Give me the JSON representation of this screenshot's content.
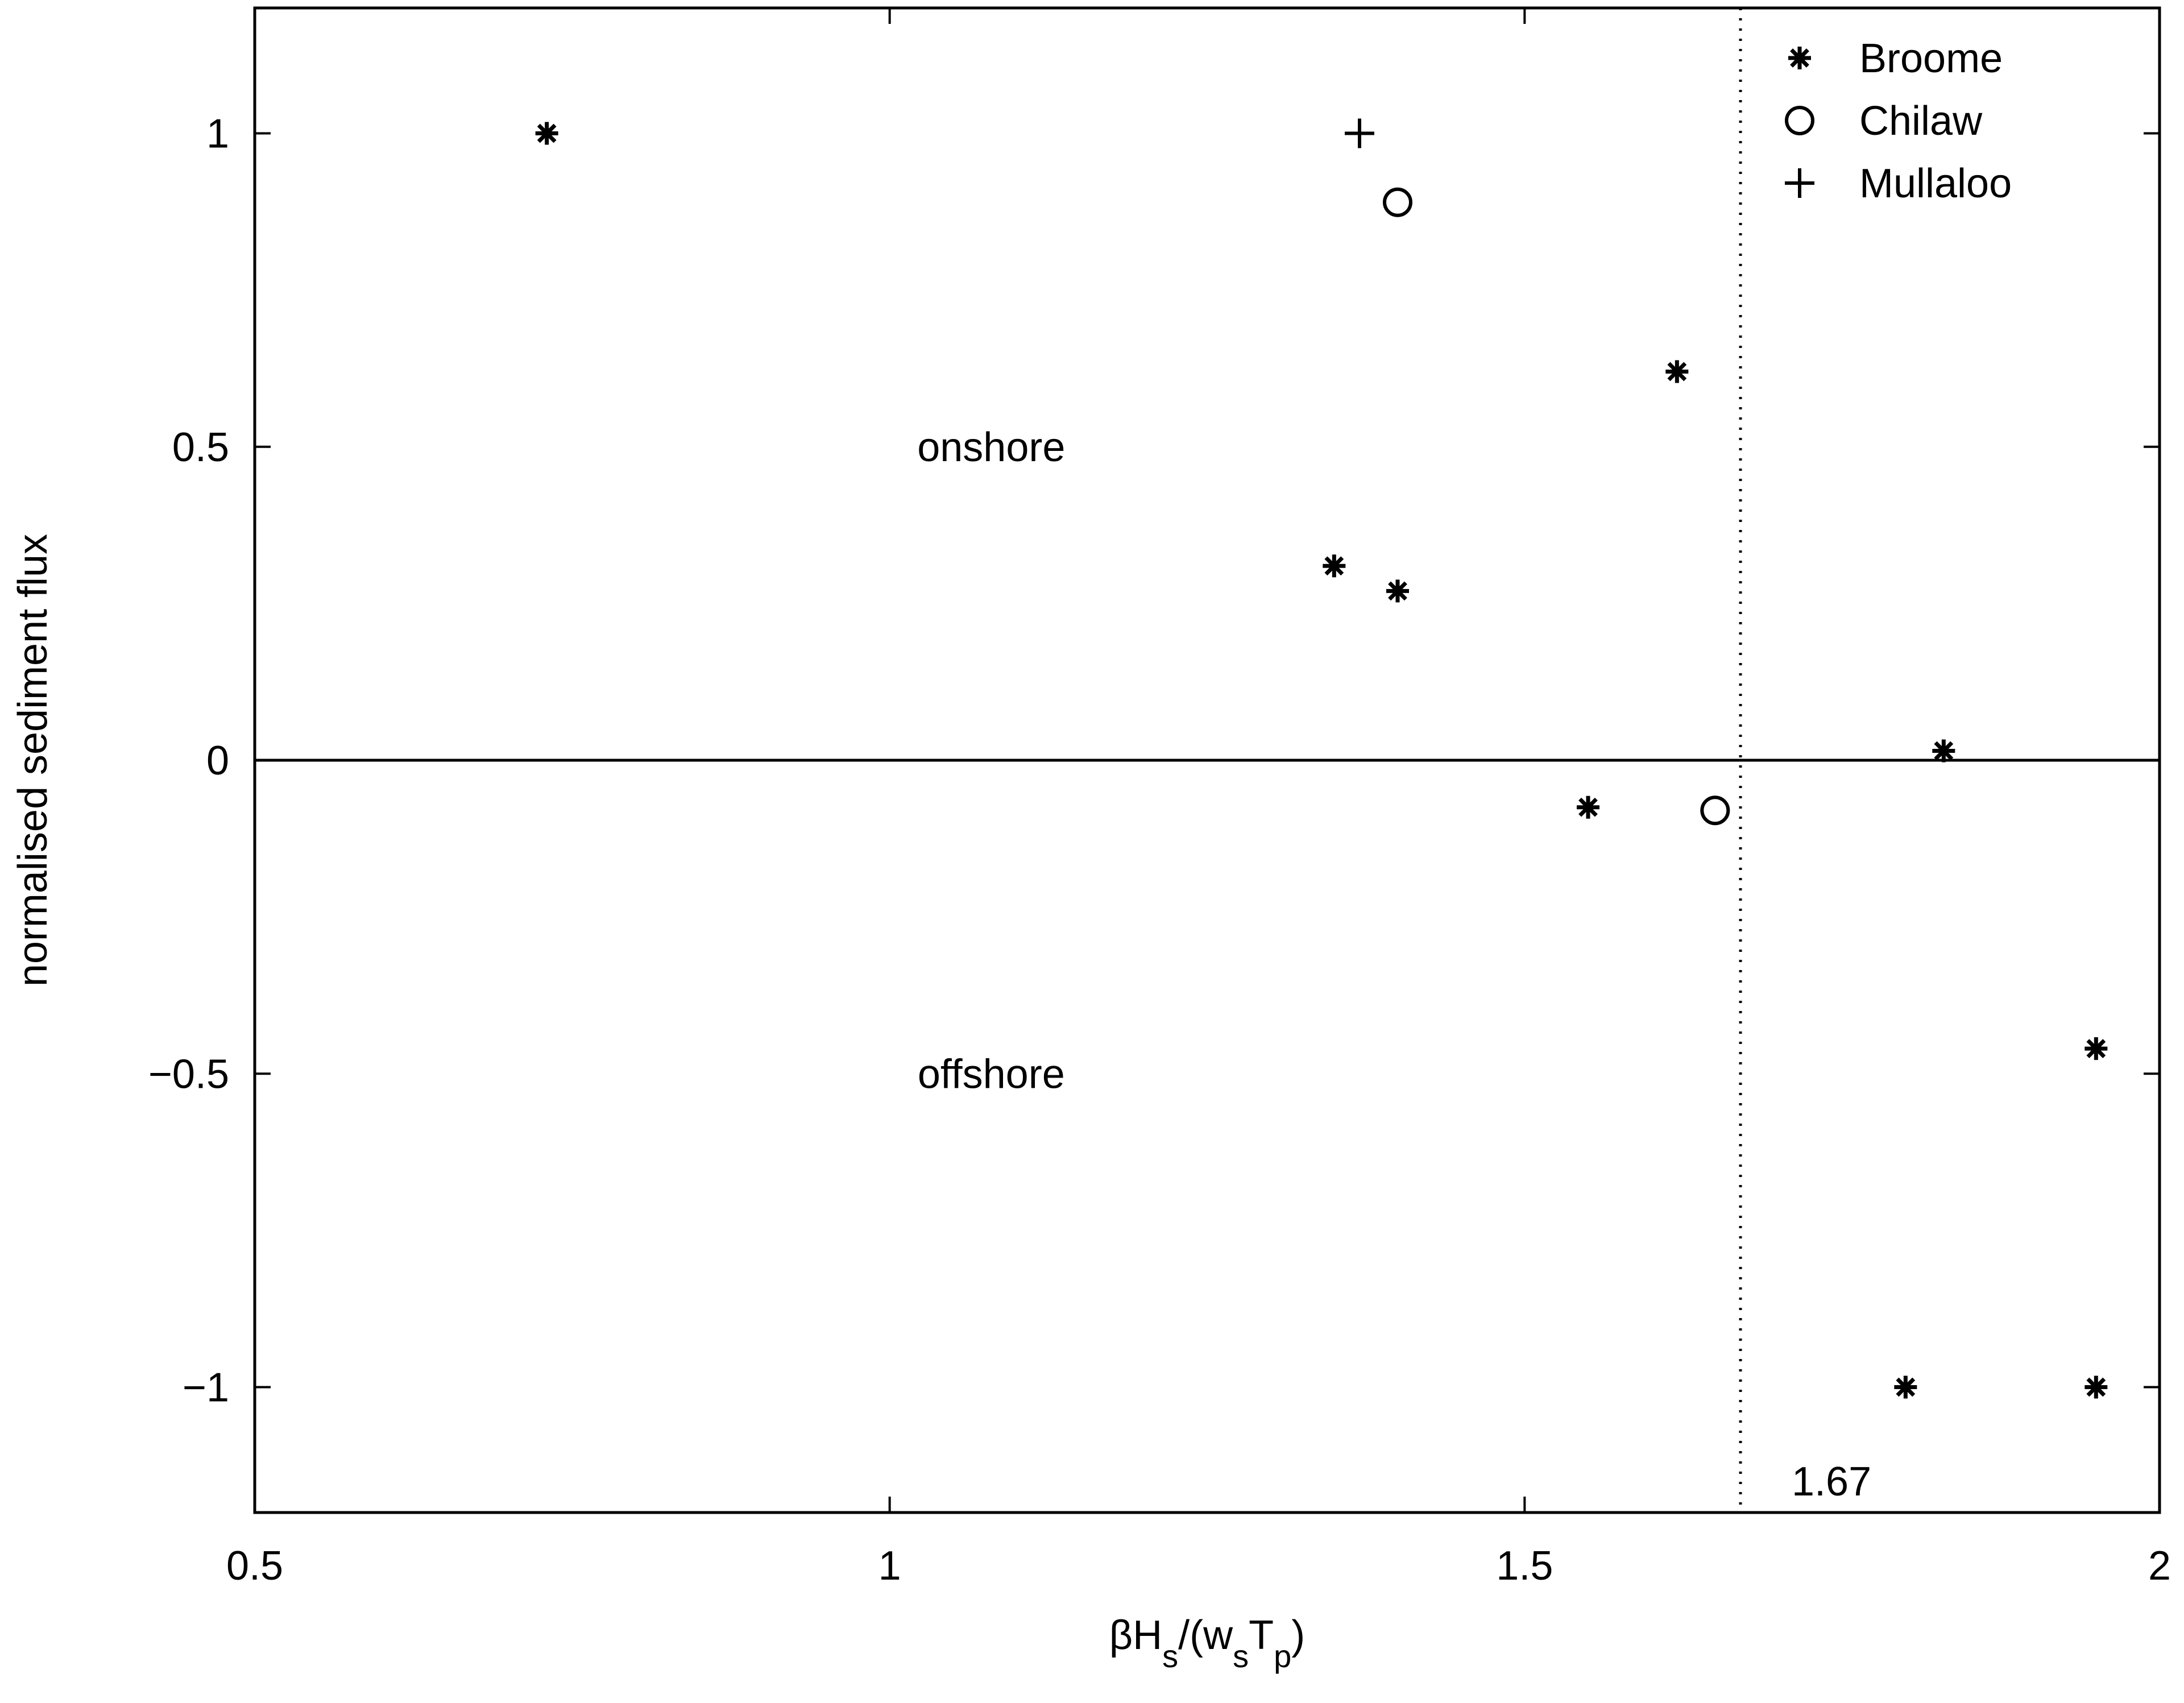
{
  "chart_data": {
    "type": "scatter",
    "xlabel": "βHs/(wsTp)",
    "xlabel_parts": [
      {
        "text": "βH",
        "sub": false
      },
      {
        "text": "s",
        "sub": true
      },
      {
        "text": "/(w",
        "sub": false
      },
      {
        "text": "s",
        "sub": true
      },
      {
        "text": "T",
        "sub": false
      },
      {
        "text": "p",
        "sub": true
      },
      {
        "text": ")",
        "sub": false
      }
    ],
    "ylabel": "normalised sediment flux",
    "xlim": [
      0.5,
      2.0
    ],
    "ylim": [
      -1.2,
      1.2
    ],
    "xticks": [
      0.5,
      1.0,
      1.5,
      2.0
    ],
    "xtick_labels": [
      "0.5",
      "1",
      "1.5",
      "2"
    ],
    "yticks": [
      1.0,
      0.5,
      0.0,
      -0.5,
      -1.0
    ],
    "ytick_labels": [
      "1",
      "0.5",
      "0",
      "−0.5",
      "−1"
    ],
    "grid": false,
    "legend_position": "top-right",
    "series": [
      {
        "name": "Broome",
        "marker": "asterisk",
        "points": [
          {
            "x": 0.73,
            "y": 1.0
          },
          {
            "x": 1.35,
            "y": 0.31
          },
          {
            "x": 1.4,
            "y": 0.27
          },
          {
            "x": 1.62,
            "y": 0.62
          },
          {
            "x": 1.55,
            "y": -0.075
          },
          {
            "x": 1.83,
            "y": 0.015
          },
          {
            "x": 1.95,
            "y": -0.46
          },
          {
            "x": 1.8,
            "y": -1.0
          },
          {
            "x": 1.95,
            "y": -1.0
          }
        ]
      },
      {
        "name": "Chilaw",
        "marker": "circle",
        "points": [
          {
            "x": 1.4,
            "y": 0.89
          },
          {
            "x": 1.65,
            "y": -0.08
          }
        ]
      },
      {
        "name": "Mullaloo",
        "marker": "plus",
        "points": [
          {
            "x": 1.37,
            "y": 1.0
          }
        ]
      }
    ],
    "reference_lines": [
      {
        "orientation": "horizontal",
        "value": 0.0,
        "style": "solid"
      },
      {
        "orientation": "vertical",
        "value": 1.67,
        "style": "dotted",
        "label": "1.67"
      }
    ],
    "annotations": [
      {
        "text": "onshore",
        "x": 1.08,
        "y": 0.5
      },
      {
        "text": "offshore",
        "x": 1.08,
        "y": -0.5
      }
    ]
  }
}
